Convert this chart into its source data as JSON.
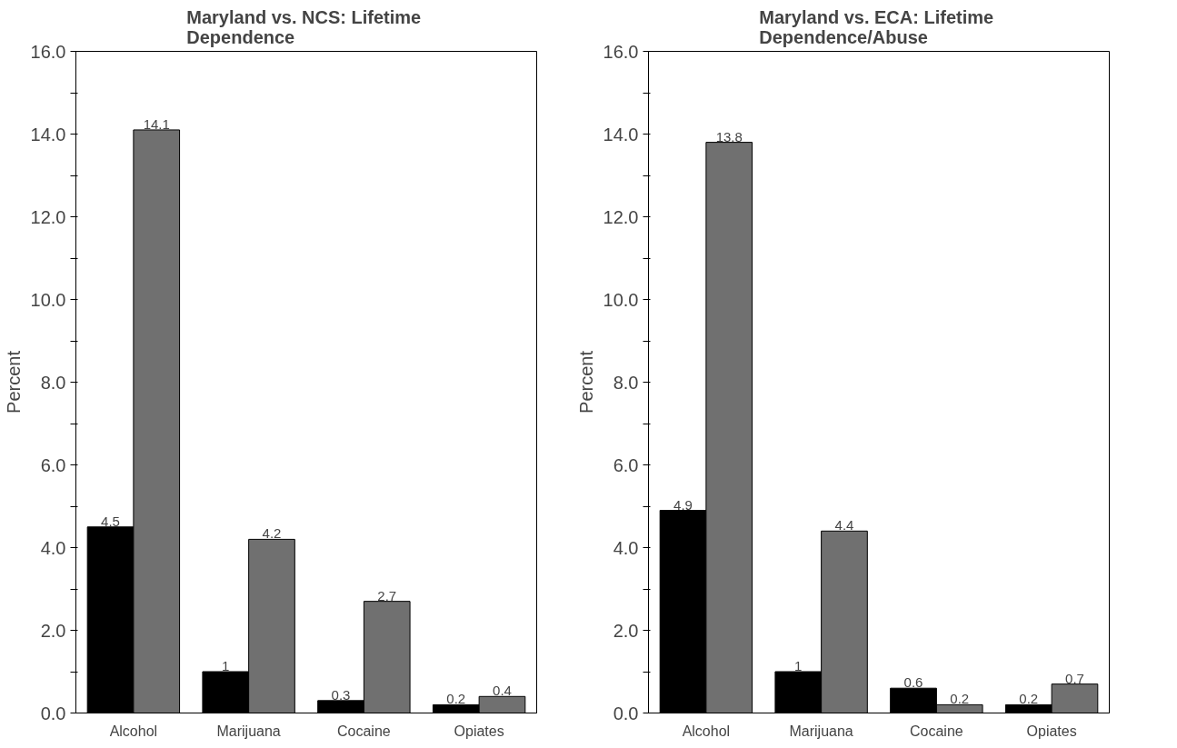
{
  "chart_data": [
    {
      "type": "bar",
      "title": "Maryland vs. NCS:  Lifetime\nDependence",
      "ylabel": "Percent",
      "categories": [
        "Alcohol",
        "Marijuana",
        "Cocaine",
        "Opiates"
      ],
      "series": [
        {
          "color": "#000000",
          "values": [
            4.5,
            1,
            0.3,
            0.2
          ]
        },
        {
          "color": "#707070",
          "values": [
            14.1,
            4.2,
            2.7,
            0.4
          ]
        }
      ],
      "ylim": [
        0,
        16
      ],
      "yticks": [
        {
          "value": 0,
          "label": "0.0"
        },
        {
          "value": 1,
          "label": null
        },
        {
          "value": 2,
          "label": "2.0"
        },
        {
          "value": 3,
          "label": null
        },
        {
          "value": 4,
          "label": "4.0"
        },
        {
          "value": 5,
          "label": null
        },
        {
          "value": 6,
          "label": "6.0"
        },
        {
          "value": 7,
          "label": null
        },
        {
          "value": 8,
          "label": "8.0"
        },
        {
          "value": 9,
          "label": null
        },
        {
          "value": 10,
          "label": "10.0"
        },
        {
          "value": 11,
          "label": null
        },
        {
          "value": 12,
          "label": "12.0"
        },
        {
          "value": 13,
          "label": null
        },
        {
          "value": 14,
          "label": "14.0"
        },
        {
          "value": 15,
          "label": null
        },
        {
          "value": 16,
          "label": "16.0"
        }
      ],
      "data_labels": true,
      "grid": false
    },
    {
      "type": "bar",
      "title": "Maryland vs. ECA:  Lifetime\nDependence/Abuse",
      "ylabel": "Percent",
      "categories": [
        "Alcohol",
        "Marijuana",
        "Cocaine",
        "Opiates"
      ],
      "series": [
        {
          "color": "#000000",
          "values": [
            4.9,
            1,
            0.6,
            0.2
          ]
        },
        {
          "color": "#707070",
          "values": [
            13.8,
            4.4,
            0.2,
            0.7
          ]
        }
      ],
      "ylim": [
        0,
        16
      ],
      "yticks": [
        {
          "value": 0,
          "label": "0.0"
        },
        {
          "value": 1,
          "label": null
        },
        {
          "value": 2,
          "label": "2.0"
        },
        {
          "value": 3,
          "label": null
        },
        {
          "value": 4,
          "label": "4.0"
        },
        {
          "value": 5,
          "label": null
        },
        {
          "value": 6,
          "label": "6.0"
        },
        {
          "value": 7,
          "label": null
        },
        {
          "value": 8,
          "label": "8.0"
        },
        {
          "value": 9,
          "label": null
        },
        {
          "value": 10,
          "label": "10.0"
        },
        {
          "value": 11,
          "label": null
        },
        {
          "value": 12,
          "label": "12.0"
        },
        {
          "value": 13,
          "label": null
        },
        {
          "value": 14,
          "label": "14.0"
        },
        {
          "value": 15,
          "label": null
        },
        {
          "value": 16,
          "label": "16.0"
        }
      ],
      "data_labels": true,
      "grid": false
    }
  ]
}
